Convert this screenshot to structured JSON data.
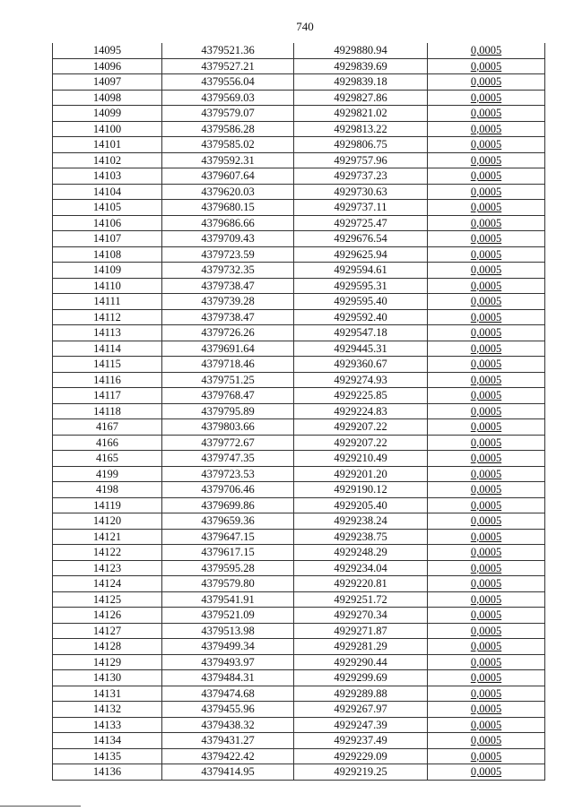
{
  "page_number": "740",
  "table": {
    "rows": [
      [
        "14095",
        "4379521.36",
        "4929880.94",
        "0,0005"
      ],
      [
        "14096",
        "4379527.21",
        "4929839.69",
        "0,0005"
      ],
      [
        "14097",
        "4379556.04",
        "4929839.18",
        "0,0005"
      ],
      [
        "14098",
        "4379569.03",
        "4929827.86",
        "0,0005"
      ],
      [
        "14099",
        "4379579.07",
        "4929821.02",
        "0,0005"
      ],
      [
        "14100",
        "4379586.28",
        "4929813.22",
        "0,0005"
      ],
      [
        "14101",
        "4379585.02",
        "4929806.75",
        "0,0005"
      ],
      [
        "14102",
        "4379592.31",
        "4929757.96",
        "0,0005"
      ],
      [
        "14103",
        "4379607.64",
        "4929737.23",
        "0,0005"
      ],
      [
        "14104",
        "4379620.03",
        "4929730.63",
        "0,0005"
      ],
      [
        "14105",
        "4379680.15",
        "4929737.11",
        "0,0005"
      ],
      [
        "14106",
        "4379686.66",
        "4929725.47",
        "0,0005"
      ],
      [
        "14107",
        "4379709.43",
        "4929676.54",
        "0,0005"
      ],
      [
        "14108",
        "4379723.59",
        "4929625.94",
        "0,0005"
      ],
      [
        "14109",
        "4379732.35",
        "4929594.61",
        "0,0005"
      ],
      [
        "14110",
        "4379738.47",
        "4929595.31",
        "0,0005"
      ],
      [
        "14111",
        "4379739.28",
        "4929595.40",
        "0,0005"
      ],
      [
        "14112",
        "4379738.47",
        "4929592.40",
        "0,0005"
      ],
      [
        "14113",
        "4379726.26",
        "4929547.18",
        "0,0005"
      ],
      [
        "14114",
        "4379691.64",
        "4929445.31",
        "0,0005"
      ],
      [
        "14115",
        "4379718.46",
        "4929360.67",
        "0,0005"
      ],
      [
        "14116",
        "4379751.25",
        "4929274.93",
        "0,0005"
      ],
      [
        "14117",
        "4379768.47",
        "4929225.85",
        "0,0005"
      ],
      [
        "14118",
        "4379795.89",
        "4929224.83",
        "0,0005"
      ],
      [
        "4167",
        "4379803.66",
        "4929207.22",
        "0,0005"
      ],
      [
        "4166",
        "4379772.67",
        "4929207.22",
        "0,0005"
      ],
      [
        "4165",
        "4379747.35",
        "4929210.49",
        "0,0005"
      ],
      [
        "4199",
        "4379723.53",
        "4929201.20",
        "0,0005"
      ],
      [
        "4198",
        "4379706.46",
        "4929190.12",
        "0,0005"
      ],
      [
        "14119",
        "4379699.86",
        "4929205.40",
        "0,0005"
      ],
      [
        "14120",
        "4379659.36",
        "4929238.24",
        "0,0005"
      ],
      [
        "14121",
        "4379647.15",
        "4929238.75",
        "0,0005"
      ],
      [
        "14122",
        "4379617.15",
        "4929248.29",
        "0,0005"
      ],
      [
        "14123",
        "4379595.28",
        "4929234.04",
        "0,0005"
      ],
      [
        "14124",
        "4379579.80",
        "4929220.81",
        "0,0005"
      ],
      [
        "14125",
        "4379541.91",
        "4929251.72",
        "0,0005"
      ],
      [
        "14126",
        "4379521.09",
        "4929270.34",
        "0,0005"
      ],
      [
        "14127",
        "4379513.98",
        "4929271.87",
        "0,0005"
      ],
      [
        "14128",
        "4379499.34",
        "4929281.29",
        "0,0005"
      ],
      [
        "14129",
        "4379493.97",
        "4929290.44",
        "0,0005"
      ],
      [
        "14130",
        "4379484.31",
        "4929299.69",
        "0,0005"
      ],
      [
        "14131",
        "4379474.68",
        "4929289.88",
        "0,0005"
      ],
      [
        "14132",
        "4379455.96",
        "4929267.97",
        "0,0005"
      ],
      [
        "14133",
        "4379438.32",
        "4929247.39",
        "0,0005"
      ],
      [
        "14134",
        "4379431.27",
        "4929237.49",
        "0,0005"
      ],
      [
        "14135",
        "4379422.42",
        "4929229.09",
        "0,0005"
      ],
      [
        "14136",
        "4379414.95",
        "4929219.25",
        "0,0005"
      ]
    ]
  }
}
